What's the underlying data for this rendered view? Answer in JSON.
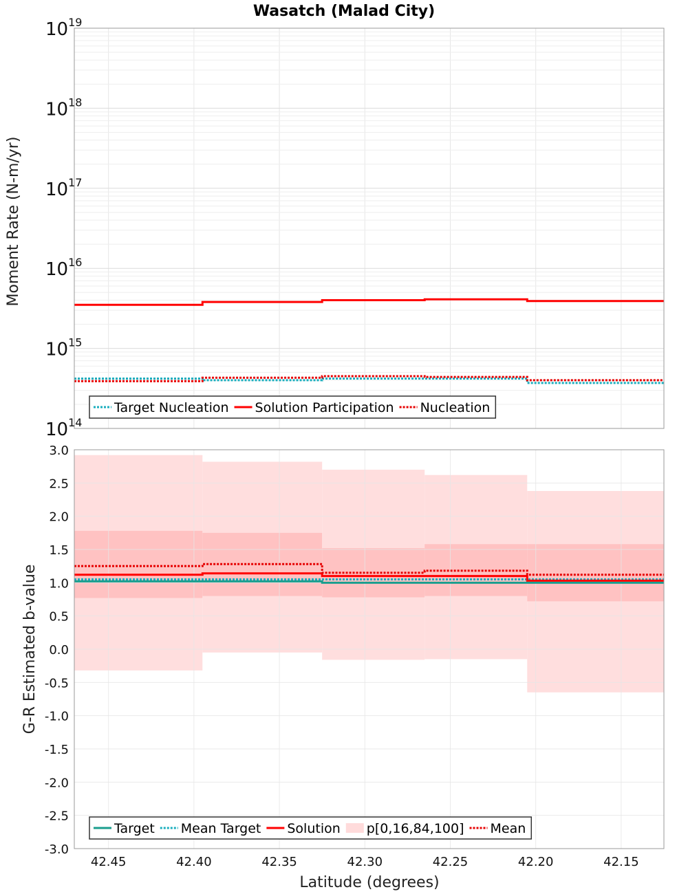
{
  "title": "Wasatch (Malad City)",
  "xlabel": "Latitude (degrees)",
  "x_ticks": [
    "42.45",
    "42.40",
    "42.35",
    "42.30",
    "42.25",
    "42.20",
    "42.15"
  ],
  "x_tick_values": [
    42.45,
    42.4,
    42.35,
    42.3,
    42.25,
    42.2,
    42.15
  ],
  "xlim": [
    42.47,
    42.125
  ],
  "bin_edges": [
    42.47,
    42.395,
    42.325,
    42.265,
    42.205,
    42.125
  ],
  "chart_data": [
    {
      "type": "line",
      "subtype": "step",
      "ylabel": "Moment Rate (N-m/yr)",
      "yscale": "log",
      "ylim": [
        100000000000000.0,
        1e+19
      ],
      "y_ticks": [
        {
          "base": "10",
          "exp": "14",
          "value": 100000000000000.0
        },
        {
          "base": "10",
          "exp": "15",
          "value": 1000000000000000.0
        },
        {
          "base": "10",
          "exp": "16",
          "value": 1e+16
        },
        {
          "base": "10",
          "exp": "17",
          "value": 1e+17
        },
        {
          "base": "10",
          "exp": "18",
          "value": 1e+18
        },
        {
          "base": "10",
          "exp": "19",
          "value": 1e+19
        }
      ],
      "grid": true,
      "legend_position": "bottom-left",
      "series": [
        {
          "name": "Target Nucleation",
          "color": "#1aaebe",
          "style": "dotted",
          "values": [
            420000000000000.0,
            400000000000000.0,
            420000000000000.0,
            420000000000000.0,
            370000000000000.0
          ]
        },
        {
          "name": "Solution Participation",
          "color": "#ff0000",
          "style": "solid",
          "values": [
            3500000000000000.0,
            3800000000000000.0,
            4000000000000000.0,
            4100000000000000.0,
            3900000000000000.0
          ]
        },
        {
          "name": "Nucleation",
          "color": "#e60000",
          "style": "dotted",
          "values": [
            390000000000000.0,
            430000000000000.0,
            450000000000000.0,
            440000000000000.0,
            400000000000000.0
          ]
        }
      ]
    },
    {
      "type": "line",
      "subtype": "step",
      "ylabel": "G-R Estimated b-value",
      "ylim": [
        -3.0,
        3.0
      ],
      "y_ticks": [
        "3.0",
        "2.5",
        "2.0",
        "1.5",
        "1.0",
        "0.5",
        "0.0",
        "-0.5",
        "-1.0",
        "-1.5",
        "-2.0",
        "-2.5",
        "-3.0"
      ],
      "y_tick_values": [
        3.0,
        2.5,
        2.0,
        1.5,
        1.0,
        0.5,
        0.0,
        -0.5,
        -1.0,
        -1.5,
        -2.0,
        -2.5,
        -3.0
      ],
      "grid": true,
      "legend_position": "bottom-left",
      "series": [
        {
          "name": "Target",
          "color": "#1a9e8e",
          "style": "solid",
          "values": [
            1.02,
            1.02,
            1.0,
            1.0,
            1.0
          ]
        },
        {
          "name": "Mean Target",
          "color": "#1aaebe",
          "style": "dotted",
          "values": [
            1.05,
            1.05,
            1.05,
            1.05,
            1.05
          ]
        },
        {
          "name": "Solution",
          "color": "#ff0000",
          "style": "solid",
          "values": [
            1.12,
            1.14,
            1.1,
            1.1,
            1.03
          ]
        },
        {
          "name": "Mean",
          "color": "#e60000",
          "style": "dotted",
          "values": [
            1.25,
            1.28,
            1.15,
            1.18,
            1.12
          ]
        }
      ],
      "bands": {
        "name": "p[0,16,84,100]",
        "color": "#ffcccc",
        "p0": [
          -0.32,
          -0.05,
          -0.16,
          -0.15,
          -0.65
        ],
        "p16": [
          0.77,
          0.8,
          0.78,
          0.8,
          0.72
        ],
        "p84": [
          1.78,
          1.75,
          1.52,
          1.58,
          1.58
        ],
        "p100": [
          2.92,
          2.82,
          2.7,
          2.62,
          2.38
        ]
      }
    }
  ]
}
